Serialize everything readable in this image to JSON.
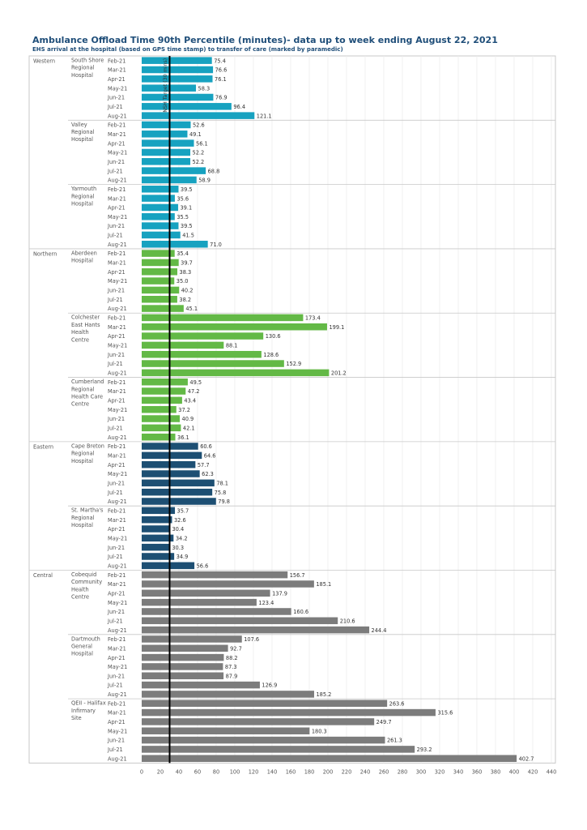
{
  "chart_data": {
    "type": "bar",
    "orientation": "horizontal",
    "title": "Ambulance Offload Time 90th Percentile (minutes)- data up to week ending August 22, 2021",
    "subtitle": "EHS arrival at the hospital (based on GPS time stamp) to transfer of care (marked by paramedic)",
    "xlim": [
      0,
      440
    ],
    "x_ticks": [
      0,
      20,
      40,
      60,
      80,
      100,
      120,
      140,
      160,
      180,
      200,
      220,
      240,
      260,
      280,
      300,
      320,
      340,
      360,
      380,
      400,
      420,
      440
    ],
    "reference_line": {
      "value": 30,
      "label": "NSH Target (30 mins)"
    },
    "months": [
      "Feb-21",
      "Mar-21",
      "Apr-21",
      "May-21",
      "Jun-21",
      "Jul-21",
      "Aug-21"
    ],
    "zones": [
      {
        "name": "Western",
        "color": "#17a2c0",
        "hospitals": [
          {
            "name": "South Shore Regional Hospital",
            "label_lines": [
              "South Shore",
              "Regional",
              "Hospital"
            ],
            "values": [
              75.4,
              76.6,
              76.1,
              58.3,
              76.9,
              96.4,
              121.1
            ],
            "value_labels": [
              "75.4",
              "76.6",
              "76.1",
              "58.3",
              "76.9",
              "96.4",
              "121.1"
            ]
          },
          {
            "name": "Valley Regional Hospital",
            "label_lines": [
              "Valley",
              "Regional",
              "Hospital"
            ],
            "values": [
              52.6,
              49.1,
              56.1,
              52.2,
              52.2,
              68.8,
              58.9
            ],
            "value_labels": [
              "52.6",
              "49.1",
              "56.1",
              "52.2",
              "52.2",
              "68.8",
              "58.9"
            ]
          },
          {
            "name": "Yarmouth Regional Hospital",
            "label_lines": [
              "Yarmouth",
              "Regional",
              "Hospital"
            ],
            "values": [
              39.5,
              35.6,
              39.1,
              35.5,
              39.5,
              41.5,
              71.0
            ],
            "value_labels": [
              "39.5",
              "35.6",
              "39.1",
              "35.5",
              "39.5",
              "41.5",
              "71.0"
            ]
          }
        ]
      },
      {
        "name": "Northern",
        "color": "#63b946",
        "hospitals": [
          {
            "name": "Aberdeen Hospital",
            "label_lines": [
              "Aberdeen",
              "Hospital"
            ],
            "values": [
              35.4,
              39.7,
              38.3,
              35.0,
              40.2,
              38.2,
              45.1
            ],
            "value_labels": [
              "35.4",
              "39.7",
              "38.3",
              "35.0",
              "40.2",
              "38.2",
              "45.1"
            ]
          },
          {
            "name": "Colchester East Hants Health Centre",
            "label_lines": [
              "Colchester",
              "East Hants",
              "Health",
              "Centre"
            ],
            "values": [
              173.4,
              199.1,
              130.6,
              88.1,
              128.6,
              152.9,
              201.2
            ],
            "value_labels": [
              "173.4",
              "199.1",
              "130.6",
              "88.1",
              "128.6",
              "152.9",
              "201.2"
            ]
          },
          {
            "name": "Cumberland Regional Health Care Centre",
            "label_lines": [
              "Cumberland",
              "Regional",
              "Health Care",
              "Centre"
            ],
            "values": [
              49.5,
              47.2,
              43.4,
              37.2,
              40.9,
              42.1,
              36.1
            ],
            "value_labels": [
              "49.5",
              "47.2",
              "43.4",
              "37.2",
              "40.9",
              "42.1",
              "36.1"
            ]
          }
        ]
      },
      {
        "name": "Eastern",
        "color": "#1d4f73",
        "hospitals": [
          {
            "name": "Cape Breton Regional Hospital",
            "label_lines": [
              "Cape Breton",
              "Regional",
              "Hospital"
            ],
            "values": [
              60.6,
              64.6,
              57.7,
              62.3,
              78.1,
              75.8,
              79.8
            ],
            "value_labels": [
              "60.6",
              "64.6",
              "57.7",
              "62.3",
              "78.1",
              "75.8",
              "79.8"
            ]
          },
          {
            "name": "St. Martha's Regional Hospital",
            "label_lines": [
              "St. Martha's",
              "Regional",
              "Hospital"
            ],
            "values": [
              35.7,
              32.6,
              30.4,
              34.2,
              30.3,
              34.9,
              56.6
            ],
            "value_labels": [
              "35.7",
              "32.6",
              "30.4",
              "34.2",
              "30.3",
              "34.9",
              "56.6"
            ]
          }
        ]
      },
      {
        "name": "Central",
        "color": "#7c7c7c",
        "hospitals": [
          {
            "name": "Cobequid Community Health Centre",
            "label_lines": [
              "Cobequid",
              "Community",
              "Health",
              "Centre"
            ],
            "values": [
              156.7,
              185.1,
              137.9,
              123.4,
              160.6,
              210.6,
              244.4
            ],
            "value_labels": [
              "156.7",
              "185.1",
              "137.9",
              "123.4",
              "160.6",
              "210.6",
              "244.4"
            ]
          },
          {
            "name": "Dartmouth General Hospital",
            "label_lines": [
              "Dartmouth",
              "General",
              "Hospital"
            ],
            "values": [
              107.6,
              92.7,
              88.2,
              87.3,
              87.9,
              126.9,
              185.2
            ],
            "value_labels": [
              "107.6",
              "92.7",
              "88.2",
              "87.3",
              "87.9",
              "126.9",
              "185.2"
            ]
          },
          {
            "name": "QEII - Halifax Infirmary Site",
            "label_lines": [
              "QEII - Halifax",
              "Infirmary",
              "Site"
            ],
            "values": [
              263.6,
              315.6,
              249.7,
              180.3,
              261.3,
              293.2,
              402.7
            ],
            "value_labels": [
              "263.6",
              "315.6",
              "249.7",
              "180.3",
              "261.3",
              "293.2",
              "402.7"
            ]
          }
        ]
      }
    ]
  }
}
